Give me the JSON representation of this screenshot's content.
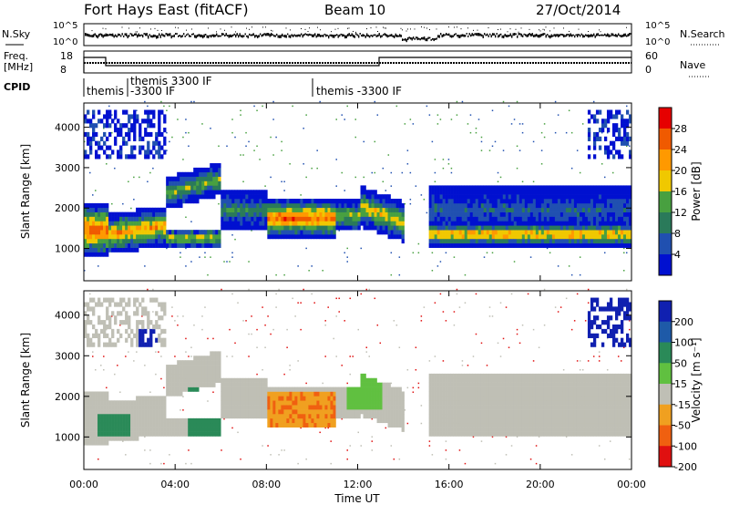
{
  "header": {
    "station": "Fort Hays East (fitACF)",
    "beam": "Beam 10",
    "date": "27/Oct/2014"
  },
  "top_panels": {
    "nsky_label": "N.Sky",
    "nsearch_label": "N.Search",
    "nsky_ticks": [
      "10^5",
      "10^0"
    ],
    "nsearch_ticks": [
      "10^5",
      "10^0"
    ],
    "freq_label": "Freq.",
    "freq_unit": "[MHz]",
    "freq_ticks": [
      "18",
      "8"
    ],
    "nave_label": "Nave",
    "nave_ticks": [
      "60",
      "0"
    ],
    "cpid_label": "CPID",
    "cpid_segments": [
      {
        "label": "themis"
      },
      {
        "label": "themis 3300 IF",
        "label2": "-3300 IF"
      },
      {
        "label": "themis -3300 IF"
      }
    ]
  },
  "chart_data": [
    {
      "type": "heatmap",
      "name": "power",
      "ylabel": "Slant Range [km]",
      "xlim": [
        0,
        24
      ],
      "ylim": [
        200,
        4600
      ],
      "yticks": [
        1000,
        2000,
        3000,
        4000
      ],
      "colorbar": {
        "label": "Power [dB]",
        "ticks": [
          "28",
          "24",
          "20",
          "16",
          "12",
          "8",
          "4"
        ],
        "colors": [
          "#e60000",
          "#f05a00",
          "#ff9900",
          "#f0c800",
          "#48a040",
          "#2a7a5a",
          "#2050b0",
          "#0010d0"
        ]
      }
    },
    {
      "type": "heatmap",
      "name": "velocity",
      "ylabel": "Slant Range [km]",
      "xlabel": "Time UT",
      "xlim": [
        0,
        24
      ],
      "ylim": [
        200,
        4600
      ],
      "yticks": [
        1000,
        2000,
        3000,
        4000
      ],
      "xticks": [
        "00:00",
        "04:00",
        "08:00",
        "12:00",
        "16:00",
        "20:00",
        "00:00"
      ],
      "colorbar": {
        "label": "Velocity [m s⁻¹]",
        "ticks": [
          "200",
          "100",
          "50",
          "15",
          "-15",
          "-50",
          "-100",
          "-200"
        ],
        "colors": [
          "#1020b0",
          "#1e5aa8",
          "#2a8a58",
          "#60c040",
          "#bfbfb5",
          "#f0a020",
          "#f06010",
          "#e01010"
        ]
      }
    }
  ]
}
